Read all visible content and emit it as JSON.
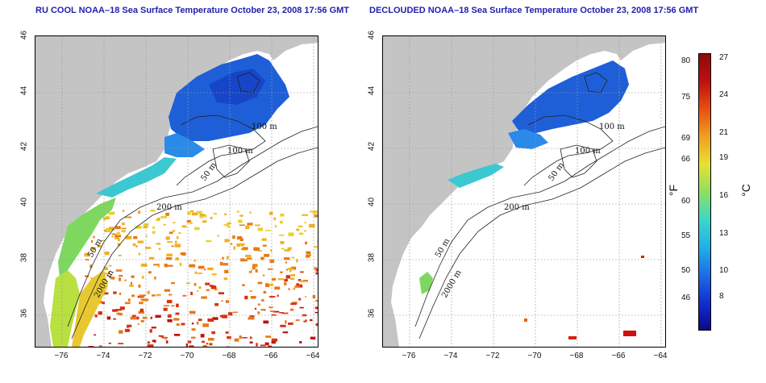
{
  "titles": {
    "left": "RU COOL NOAA–18 Sea Surface Temperature October 23, 2008 17:56 GMT",
    "right": "DECLOUDED NOAA–18 Sea Surface Temperature October 23, 2008 17:56 GMT"
  },
  "lat_ticks": [
    "46",
    "44",
    "42",
    "40",
    "38",
    "36"
  ],
  "lon_ticks": [
    "−76",
    "−74",
    "−72",
    "−70",
    "−68",
    "−66",
    "−64"
  ],
  "contour_labels": {
    "m100": "100 m",
    "m100b": "100 m",
    "m50": "50 m",
    "m200": "200 m",
    "m50b": "50 m",
    "m2000": "2000 m"
  },
  "colorbar": {
    "fahrenheit_ticks": [
      "80",
      "75",
      "69",
      "66",
      "60",
      "55",
      "50",
      "46"
    ],
    "celsius_ticks": [
      "27",
      "24",
      "21",
      "19",
      "16",
      "13",
      "10",
      "8"
    ],
    "unit_f": "°F",
    "unit_c": "°C",
    "colors": [
      "#0a0a8c",
      "#1030d0",
      "#1d6de8",
      "#22b0e8",
      "#3ad8c8",
      "#8ee060",
      "#e8e030",
      "#f0a020",
      "#e85010",
      "#c01010",
      "#8c0a0a"
    ]
  },
  "colors": {
    "land": "#c4c4c4",
    "grid": "#b0b0b0",
    "title": "#1f1fb0"
  }
}
